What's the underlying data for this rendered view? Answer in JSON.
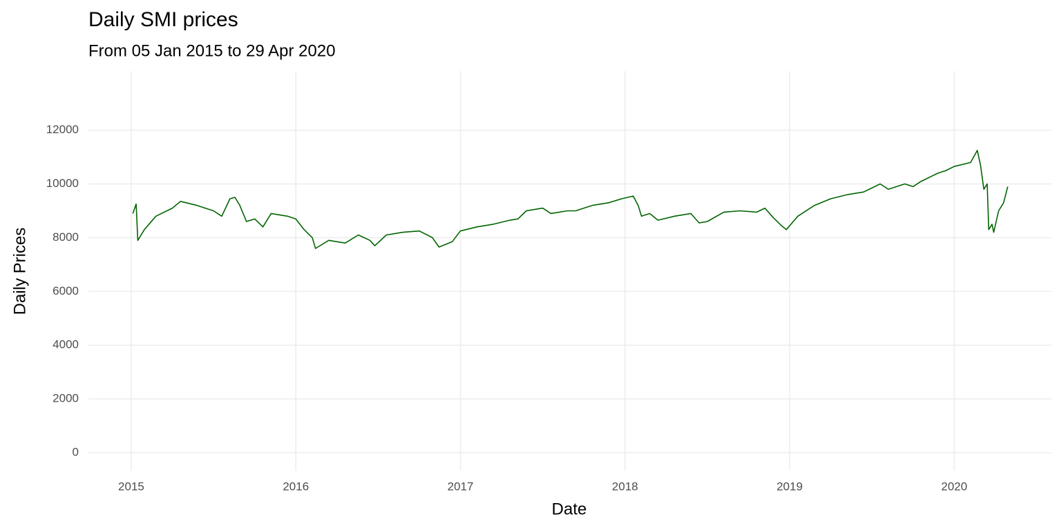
{
  "chart_data": {
    "type": "line",
    "title": "Daily SMI prices",
    "subtitle": "From 05 Jan 2015 to 29 Apr 2020",
    "x_label": "Date",
    "y_label": "Daily Prices",
    "x": [
      2015.01,
      2015.03,
      2015.04,
      2015.08,
      2015.15,
      2015.25,
      2015.3,
      2015.4,
      2015.5,
      2015.55,
      2015.6,
      2015.63,
      2015.66,
      2015.7,
      2015.75,
      2015.8,
      2015.85,
      2015.95,
      2016.0,
      2016.05,
      2016.1,
      2016.12,
      2016.2,
      2016.3,
      2016.38,
      2016.45,
      2016.48,
      2016.55,
      2016.65,
      2016.75,
      2016.83,
      2016.87,
      2016.95,
      2017.0,
      2017.1,
      2017.2,
      2017.3,
      2017.35,
      2017.4,
      2017.5,
      2017.55,
      2017.65,
      2017.7,
      2017.8,
      2017.9,
      2017.98,
      2018.05,
      2018.08,
      2018.1,
      2018.15,
      2018.2,
      2018.3,
      2018.4,
      2018.45,
      2018.5,
      2018.6,
      2018.7,
      2018.8,
      2018.85,
      2018.9,
      2018.95,
      2018.98,
      2019.05,
      2019.15,
      2019.25,
      2019.35,
      2019.45,
      2019.5,
      2019.55,
      2019.6,
      2019.65,
      2019.7,
      2019.75,
      2019.8,
      2019.9,
      2019.95,
      2020.0,
      2020.1,
      2020.14,
      2020.16,
      2020.18,
      2020.2,
      2020.21,
      2020.23,
      2020.24,
      2020.27,
      2020.3,
      2020.325
    ],
    "series": [
      {
        "name": "SMI",
        "color": "#006400",
        "values": [
          8900,
          9250,
          7900,
          8300,
          8800,
          9100,
          9350,
          9200,
          9000,
          8800,
          9450,
          9500,
          9200,
          8600,
          8700,
          8400,
          8900,
          8800,
          8700,
          8300,
          8000,
          7600,
          7900,
          7800,
          8100,
          7900,
          7700,
          8100,
          8200,
          8250,
          8000,
          7650,
          7850,
          8250,
          8400,
          8500,
          8650,
          8700,
          9000,
          9100,
          8900,
          9000,
          9000,
          9200,
          9300,
          9450,
          9550,
          9200,
          8800,
          8900,
          8650,
          8800,
          8900,
          8550,
          8600,
          8950,
          9000,
          8950,
          9100,
          8750,
          8450,
          8300,
          8800,
          9200,
          9450,
          9600,
          9700,
          9850,
          10000,
          9800,
          9900,
          10000,
          9900,
          10100,
          10400,
          10500,
          10650,
          10800,
          11250,
          10700,
          9800,
          10000,
          8300,
          8500,
          8200,
          9000,
          9300,
          9900
        ]
      }
    ],
    "xlim": [
      2014.74,
      2020.59
    ],
    "xticks": [
      2015,
      2016,
      2017,
      2018,
      2019,
      2020
    ],
    "ylim": [
      -670,
      14200
    ],
    "yticks": [
      0,
      2000,
      4000,
      6000,
      8000,
      10000,
      12000
    ],
    "grid": true
  }
}
